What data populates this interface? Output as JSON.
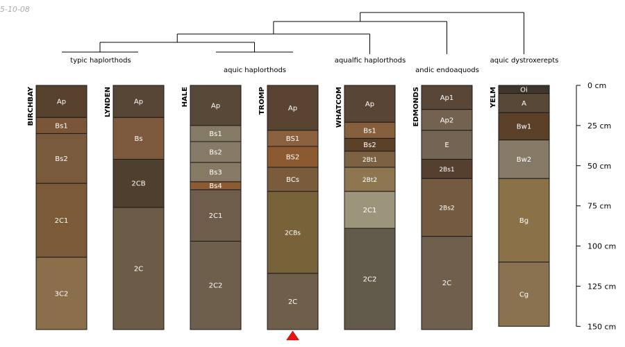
{
  "stamp": "5-10-08",
  "chart_data": {
    "type": "table",
    "depth_axis": {
      "unit": "cm",
      "ticks": [
        0,
        25,
        50,
        75,
        100,
        125,
        150
      ],
      "tick_labels": [
        "0 cm",
        "25 cm",
        "50 cm",
        "75 cm",
        "100 cm",
        "125 cm",
        "150 cm"
      ],
      "range": [
        0,
        150
      ]
    },
    "groups": [
      {
        "label": "typic haplorthods",
        "members": [
          "BIRCHBAY",
          "LYNDEN"
        ]
      },
      {
        "label": "aquic haplorthods",
        "members": [
          "HALE",
          "TROMP"
        ]
      },
      {
        "label": "aqualfic haplorthods",
        "members": [
          "WHATCOM"
        ]
      },
      {
        "label": "andic endoaquods",
        "members": [
          "EDMONDS"
        ]
      },
      {
        "label": "aquic dystroxerepts",
        "members": [
          "YELM"
        ]
      }
    ],
    "profiles": [
      {
        "name": "BIRCHBAY",
        "horizons": [
          {
            "name": "Ap",
            "top": 0,
            "bottom": 20,
            "color": "#56412d"
          },
          {
            "name": "Bs1",
            "top": 20,
            "bottom": 30,
            "color": "#7a5537"
          },
          {
            "name": "Bs2",
            "top": 30,
            "bottom": 61,
            "color": "#7a5a3c"
          },
          {
            "name": "2C1",
            "top": 61,
            "bottom": 107,
            "color": "#7b5a37"
          },
          {
            "name": "3C2",
            "top": 107,
            "bottom": 152,
            "color": "#8b6f4a"
          }
        ]
      },
      {
        "name": "LYNDEN",
        "horizons": [
          {
            "name": "Ap",
            "top": 0,
            "bottom": 20,
            "color": "#574536"
          },
          {
            "name": "Bs",
            "top": 20,
            "bottom": 46,
            "color": "#7d5a3d"
          },
          {
            "name": "2CB",
            "top": 46,
            "bottom": 76,
            "color": "#4e3f2e"
          },
          {
            "name": "2C",
            "top": 76,
            "bottom": 152,
            "color": "#6c5c47"
          }
        ]
      },
      {
        "name": "HALE",
        "horizons": [
          {
            "name": "Ap",
            "top": 0,
            "bottom": 25,
            "color": "#584838"
          },
          {
            "name": "Bs1",
            "top": 25,
            "bottom": 35,
            "color": "#857a63"
          },
          {
            "name": "Bs2",
            "top": 35,
            "bottom": 48,
            "color": "#877a66"
          },
          {
            "name": "Bs3",
            "top": 48,
            "bottom": 60,
            "color": "#877a64"
          },
          {
            "name": "Bs4",
            "top": 60,
            "bottom": 65,
            "color": "#8c5a33"
          },
          {
            "name": "2C1",
            "top": 65,
            "bottom": 97,
            "color": "#6e5d4a"
          },
          {
            "name": "2C2",
            "top": 97,
            "bottom": 152,
            "color": "#6e5f4c"
          }
        ]
      },
      {
        "name": "TROMP",
        "horizons": [
          {
            "name": "Ap",
            "top": 0,
            "bottom": 28,
            "color": "#594331"
          },
          {
            "name": "BS1",
            "top": 28,
            "bottom": 38,
            "color": "#8b603e"
          },
          {
            "name": "BS2",
            "top": 38,
            "bottom": 51,
            "color": "#8c5a30"
          },
          {
            "name": "BCs",
            "top": 51,
            "bottom": 66,
            "color": "#7a5c3d"
          },
          {
            "name": "2CBs",
            "top": 66,
            "bottom": 117,
            "color": "#78623a"
          },
          {
            "name": "2C",
            "top": 117,
            "bottom": 152,
            "color": "#6e5e4a"
          }
        ]
      },
      {
        "name": "WHATCOM",
        "horizons": [
          {
            "name": "Ap",
            "top": 0,
            "bottom": 23,
            "color": "#594535"
          },
          {
            "name": "Bs1",
            "top": 23,
            "bottom": 33,
            "color": "#86603d"
          },
          {
            "name": "Bs2",
            "top": 33,
            "bottom": 41,
            "color": "#5b4128"
          },
          {
            "name": "2Bt1",
            "top": 41,
            "bottom": 51,
            "color": "#7c6242"
          },
          {
            "name": "2Bt2",
            "top": 51,
            "bottom": 66,
            "color": "#8d7650"
          },
          {
            "name": "2C1",
            "top": 66,
            "bottom": 89,
            "color": "#9d957b"
          },
          {
            "name": "2C2",
            "top": 89,
            "bottom": 152,
            "color": "#625b4c"
          }
        ]
      },
      {
        "name": "EDMONDS",
        "horizons": [
          {
            "name": "Ap1",
            "top": 0,
            "bottom": 15,
            "color": "#5a4636"
          },
          {
            "name": "Ap2",
            "top": 15,
            "bottom": 28,
            "color": "#746250"
          },
          {
            "name": "E",
            "top": 28,
            "bottom": 46,
            "color": "#736454"
          },
          {
            "name": "2Bs1",
            "top": 46,
            "bottom": 58,
            "color": "#554030"
          },
          {
            "name": "2Bs2",
            "top": 58,
            "bottom": 94,
            "color": "#745a3f"
          },
          {
            "name": "2C",
            "top": 94,
            "bottom": 152,
            "color": "#6f5f4c"
          }
        ]
      },
      {
        "name": "YELM",
        "horizons": [
          {
            "name": "Oi",
            "top": 0,
            "bottom": 5,
            "color": "#3e352c"
          },
          {
            "name": "A",
            "top": 5,
            "bottom": 17,
            "color": "#574838"
          },
          {
            "name": "Bw1",
            "top": 17,
            "bottom": 34,
            "color": "#5b3f26"
          },
          {
            "name": "Bw2",
            "top": 34,
            "bottom": 58,
            "color": "#857a66"
          },
          {
            "name": "Bg",
            "top": 58,
            "bottom": 110,
            "color": "#8a7148"
          },
          {
            "name": "Cg",
            "top": 110,
            "bottom": 150,
            "color": "#8a7150"
          }
        ]
      }
    ],
    "marker": {
      "profile": "TROMP",
      "shape": "triangle",
      "color": "#e8140f"
    }
  }
}
